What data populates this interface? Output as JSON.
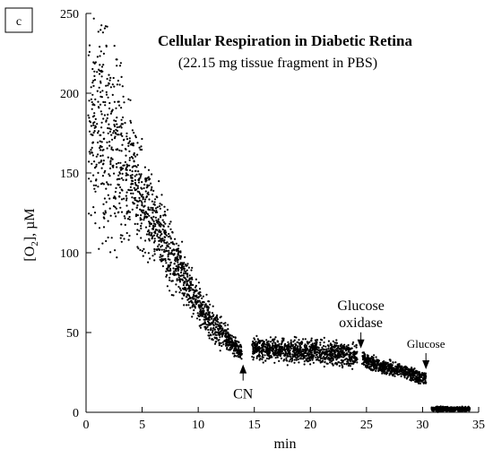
{
  "panel_label": "c",
  "chart_data": {
    "type": "scatter",
    "title": "Cellular Respiration in Diabetic Retina",
    "subtitle": "(22.15 mg tissue fragment in PBS)",
    "xlabel": "min",
    "ylabel_main": "[O",
    "ylabel_sub": "2",
    "ylabel_tail": "], µM",
    "xlim": [
      0,
      35
    ],
    "ylim": [
      0,
      250
    ],
    "xticks": [
      0,
      5,
      10,
      15,
      20,
      25,
      30,
      35
    ],
    "yticks": [
      0,
      50,
      100,
      150,
      200,
      250
    ],
    "grid": false,
    "point_color": "#000000",
    "series": [
      {
        "x": [
          0.2,
          0.8,
          1.5,
          2.2,
          3.0,
          3.8,
          4.5,
          5.3,
          6.0,
          6.8,
          7.5,
          8.3,
          9.0,
          9.8,
          10.5,
          11.3,
          12.0,
          12.8,
          13.5,
          13.9
        ],
        "y": [
          190,
          185,
          175,
          168,
          158,
          148,
          140,
          130,
          120,
          110,
          100,
          90,
          80,
          70,
          62,
          55,
          50,
          45,
          40,
          37
        ],
        "spread": [
          35,
          45,
          45,
          40,
          35,
          30,
          25,
          22,
          18,
          15,
          14,
          12,
          10,
          9,
          8,
          7,
          6,
          5,
          4,
          3
        ]
      },
      {
        "x": [
          14.8,
          16,
          18,
          20,
          22,
          23.5,
          24.2
        ],
        "y": [
          40,
          40,
          39,
          38,
          37,
          36,
          35
        ],
        "spread": [
          5,
          5,
          5,
          5,
          5,
          5,
          5
        ]
      },
      {
        "x": [
          24.6,
          25,
          26,
          27,
          28,
          29,
          30,
          30.3
        ],
        "y": [
          35,
          32,
          30,
          28,
          26,
          24,
          22,
          21
        ],
        "spread": [
          3,
          3,
          3,
          3,
          3,
          3,
          3,
          3
        ]
      },
      {
        "x": [
          30.8,
          31.5,
          32.5,
          33.5,
          34.2
        ],
        "y": [
          2,
          2,
          2,
          2,
          2
        ],
        "spread": [
          1,
          1,
          1,
          1,
          1
        ]
      }
    ],
    "annotations": [
      {
        "text": "CN",
        "lines": [
          "CN"
        ],
        "x": 14,
        "y": 30,
        "direction": "up"
      },
      {
        "text": "Glucose oxidase",
        "lines": [
          "Glucose",
          "oxidase"
        ],
        "x": 24.5,
        "y": 40,
        "direction": "down"
      },
      {
        "text": "Glucose",
        "lines": [
          "Glucose"
        ],
        "x": 30.3,
        "y": 27,
        "direction": "down"
      }
    ]
  }
}
